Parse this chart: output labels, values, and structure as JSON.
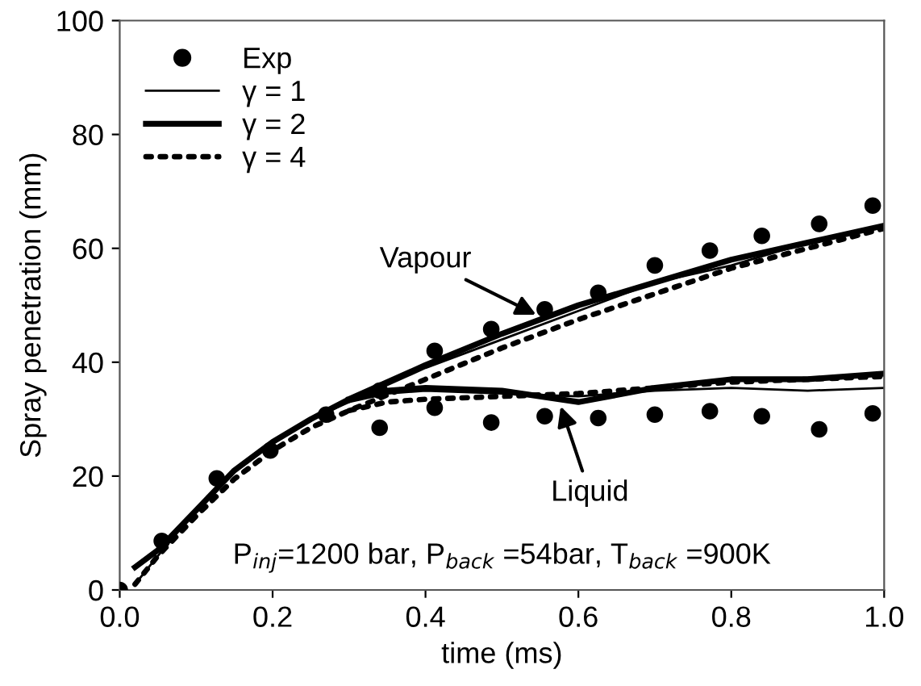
{
  "chart_data": {
    "type": "line",
    "xlabel": "time (ms)",
    "ylabel": "Spray penetration (mm)",
    "xlim": [
      0,
      1.0
    ],
    "ylim": [
      0,
      100
    ],
    "xticks": [
      {
        "value": 0,
        "label": "0.0"
      },
      0.2,
      0.4,
      0.6,
      0.8,
      {
        "value": 1.0,
        "label": "1.0"
      }
    ],
    "yticks": [
      0,
      20,
      40,
      60,
      80,
      100
    ],
    "grid": false,
    "legend": "top left",
    "series": [
      {
        "name": "Exp",
        "type": "scatter",
        "marker": "circle",
        "color": "#000000",
        "x": [
          0,
          0.055,
          0.127,
          0.197,
          0.27,
          0.34,
          0.34,
          0.412,
          0.412,
          0.486,
          0.486,
          0.556,
          0.556,
          0.626,
          0.626,
          0.7,
          0.7,
          0.772,
          0.772,
          0.84,
          0.84,
          0.915,
          0.915,
          0.985,
          0.985
        ],
        "values": [
          0,
          8.6,
          19.6,
          24.5,
          30.8,
          28.5,
          35,
          42,
          32,
          45.8,
          29.4,
          49.3,
          30.5,
          52.2,
          30.2,
          57,
          30.8,
          59.6,
          31.4,
          62.2,
          30.5,
          64.3,
          28.2,
          67.5,
          31
        ]
      },
      {
        "name": "γ = 1",
        "line_style": "solid",
        "color": "#000000",
        "x": [
          0.02,
          0.05,
          0.1,
          0.15,
          0.2,
          0.25,
          0.3,
          0.4,
          0.5,
          0.6,
          0.7,
          0.8,
          0.9,
          1.0
        ],
        "values": [
          1,
          6,
          14,
          21,
          26,
          30,
          33,
          39,
          44,
          49,
          54,
          57,
          61,
          64
        ]
      },
      {
        "name": "γ = 2",
        "line_style": "solid",
        "color": "#000000",
        "x": [
          0.02,
          0.05,
          0.1,
          0.15,
          0.2,
          0.25,
          0.3,
          0.4,
          0.5,
          0.6,
          0.7,
          0.8,
          0.9,
          1.0
        ],
        "values": [
          4,
          7,
          14,
          21,
          26,
          30,
          33.5,
          39.5,
          45,
          50,
          54,
          58,
          61,
          64
        ]
      },
      {
        "name": "γ = 4",
        "line_style": "dotted",
        "color": "#000000",
        "x": [
          0.02,
          0.05,
          0.1,
          0.15,
          0.2,
          0.25,
          0.3,
          0.4,
          0.5,
          0.6,
          0.7,
          0.8,
          0.9,
          1.0
        ],
        "values": [
          1,
          6,
          13,
          19.5,
          24.5,
          28.5,
          31.5,
          37,
          42.5,
          47.5,
          52,
          56.5,
          60,
          63.5
        ]
      },
      {
        "line_style": "solid",
        "color": "#000000",
        "x": [
          0.3,
          0.35,
          0.4,
          0.5,
          0.6,
          0.7,
          0.8,
          0.9,
          1.0
        ],
        "values": [
          33,
          34.5,
          35,
          34.5,
          34,
          35,
          35.5,
          35,
          35.5
        ]
      },
      {
        "line_style": "solid",
        "color": "#000000",
        "x": [
          0.3,
          0.35,
          0.4,
          0.5,
          0.6,
          0.7,
          0.8,
          0.9,
          1.0
        ],
        "values": [
          33.5,
          35,
          35.5,
          35,
          33,
          35.5,
          37,
          37,
          38
        ]
      },
      {
        "line_style": "dotted",
        "color": "#000000",
        "x": [
          0.3,
          0.35,
          0.4,
          0.5,
          0.6,
          0.7,
          0.8,
          0.9,
          1.0
        ],
        "values": [
          31.5,
          33,
          33.5,
          34,
          34.5,
          35.5,
          36.5,
          37,
          37.5
        ]
      }
    ],
    "annotations": [
      {
        "text": "Vapour",
        "x": 0.55,
        "y": 48
      },
      {
        "text": "Liquid",
        "x": 0.575,
        "y": 33
      },
      "P$_{inj}$=1200 bar, P$_{back}$ =54bar, T$_{back}$ =900K"
    ]
  }
}
